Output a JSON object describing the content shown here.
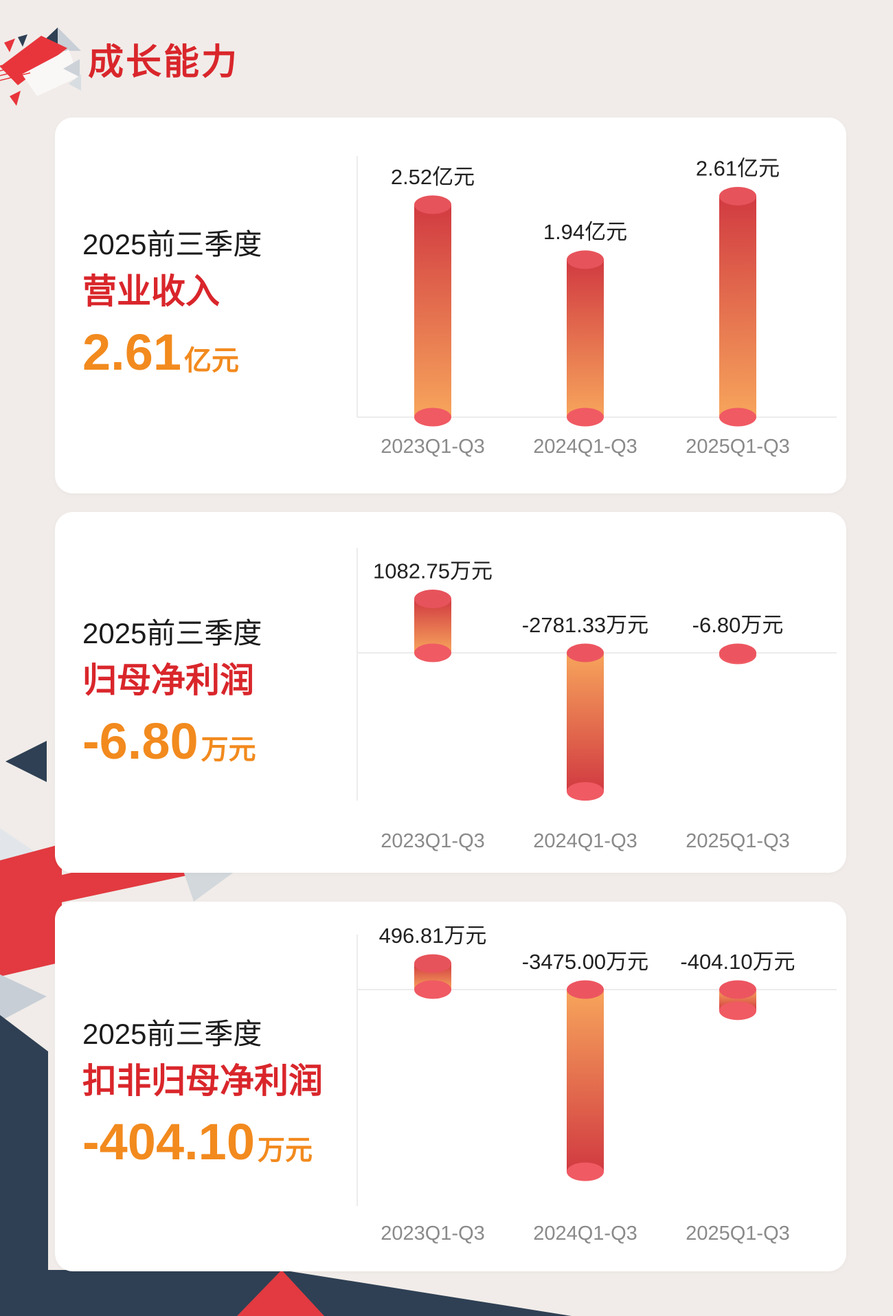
{
  "page": {
    "title": "成长能力",
    "background": "#F1ECE9",
    "accent_red": "#D9262B",
    "accent_orange": "#F28A1E",
    "navy": "#2F4054",
    "bar_red": "#D13A41",
    "bar_orange": "#F7A55C"
  },
  "cards": [
    {
      "period": "2025前三季度",
      "metric": "营业收入",
      "value": "2.61",
      "unit": "亿元"
    },
    {
      "period": "2025前三季度",
      "metric": "归母净利润",
      "value": "-6.80",
      "unit": "万元"
    },
    {
      "period": "2025前三季度",
      "metric": "扣非归母净利润",
      "value": "-404.10",
      "unit": "万元"
    }
  ],
  "chart_data": [
    {
      "type": "bar",
      "title": "营业收入",
      "categories": [
        "2023Q1-Q3",
        "2024Q1-Q3",
        "2025Q1-Q3"
      ],
      "values": [
        2.52,
        1.94,
        2.61
      ],
      "labels": [
        "2.52亿元",
        "1.94亿元",
        "2.61亿元"
      ],
      "unit": "亿元",
      "grid": false,
      "legend": "none",
      "ylim": [
        0.28,
        3.0
      ]
    },
    {
      "type": "bar",
      "title": "归母净利润",
      "categories": [
        "2023Q1-Q3",
        "2024Q1-Q3",
        "2025Q1-Q3"
      ],
      "values": [
        1082.75,
        -2781.33,
        -6.8
      ],
      "labels": [
        "1082.75万元",
        "-2781.33万元",
        "-6.80万元"
      ],
      "unit": "万元",
      "grid": false,
      "legend": "none",
      "ylim": [
        -3200,
        1400
      ]
    },
    {
      "type": "bar",
      "title": "扣非归母净利润",
      "categories": [
        "2023Q1-Q3",
        "2024Q1-Q3",
        "2025Q1-Q3"
      ],
      "values": [
        496.81,
        -3475.0,
        -404.1
      ],
      "labels": [
        "496.81万元",
        "-3475.00万元",
        "-404.10万元"
      ],
      "unit": "万元",
      "grid": false,
      "legend": "none",
      "ylim": [
        -3800,
        700
      ]
    }
  ]
}
